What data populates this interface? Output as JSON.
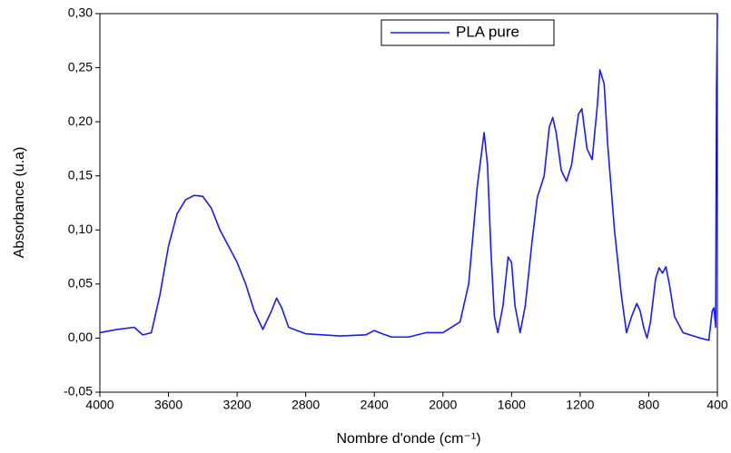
{
  "chart_data": {
    "type": "line",
    "x_label": "Nombre d'onde (cm⁻¹)",
    "y_label": "Absorbance (u.a)",
    "xlim": [
      4000,
      400
    ],
    "ylim": [
      -0.05,
      0.3
    ],
    "xticks": [
      4000,
      3600,
      3200,
      2800,
      2400,
      2000,
      1600,
      1200,
      800,
      400
    ],
    "yticks": [
      {
        "value": -0.05,
        "label": "-0,05"
      },
      {
        "value": 0,
        "label": "0,00"
      },
      {
        "value": 0.05,
        "label": "0,05"
      },
      {
        "value": 0.1,
        "label": "0,10"
      },
      {
        "value": 0.15,
        "label": "0,15"
      },
      {
        "value": 0.2,
        "label": "0,20"
      },
      {
        "value": 0.25,
        "label": "0,25"
      },
      {
        "value": 0.3,
        "label": "0,30"
      }
    ],
    "legend": "top",
    "series": [
      {
        "name": "PLA pure",
        "color": "#1a1aff",
        "x": [
          4000,
          3900,
          3800,
          3750,
          3700,
          3650,
          3600,
          3550,
          3500,
          3450,
          3400,
          3350,
          3300,
          3200,
          3150,
          3100,
          3050,
          3000,
          2970,
          2940,
          2900,
          2850,
          2800,
          2600,
          2450,
          2400,
          2370,
          2300,
          2200,
          2100,
          2000,
          1900,
          1850,
          1800,
          1760,
          1740,
          1720,
          1700,
          1680,
          1650,
          1620,
          1600,
          1580,
          1550,
          1520,
          1480,
          1450,
          1410,
          1380,
          1360,
          1340,
          1310,
          1280,
          1250,
          1210,
          1190,
          1160,
          1130,
          1100,
          1085,
          1060,
          1040,
          1000,
          960,
          930,
          900,
          870,
          850,
          830,
          810,
          790,
          760,
          740,
          720,
          700,
          680,
          650,
          600,
          500,
          450,
          430,
          420,
          410,
          405,
          400
        ],
        "values": [
          0.005,
          0.008,
          0.01,
          0.003,
          0.005,
          0.04,
          0.085,
          0.115,
          0.128,
          0.132,
          0.131,
          0.12,
          0.1,
          0.07,
          0.05,
          0.025,
          0.008,
          0.025,
          0.037,
          0.028,
          0.01,
          0.007,
          0.004,
          0.002,
          0.003,
          0.007,
          0.005,
          0.001,
          0.001,
          0.005,
          0.005,
          0.015,
          0.05,
          0.14,
          0.19,
          0.16,
          0.08,
          0.02,
          0.005,
          0.03,
          0.075,
          0.07,
          0.03,
          0.005,
          0.03,
          0.09,
          0.13,
          0.15,
          0.195,
          0.204,
          0.19,
          0.155,
          0.145,
          0.16,
          0.207,
          0.212,
          0.175,
          0.165,
          0.215,
          0.248,
          0.235,
          0.18,
          0.1,
          0.04,
          0.005,
          0.02,
          0.032,
          0.025,
          0.01,
          0.0,
          0.015,
          0.055,
          0.065,
          0.06,
          0.066,
          0.05,
          0.02,
          0.005,
          0.0,
          -0.002,
          0.025,
          0.028,
          0.01,
          0.23,
          0.3
        ]
      }
    ]
  }
}
